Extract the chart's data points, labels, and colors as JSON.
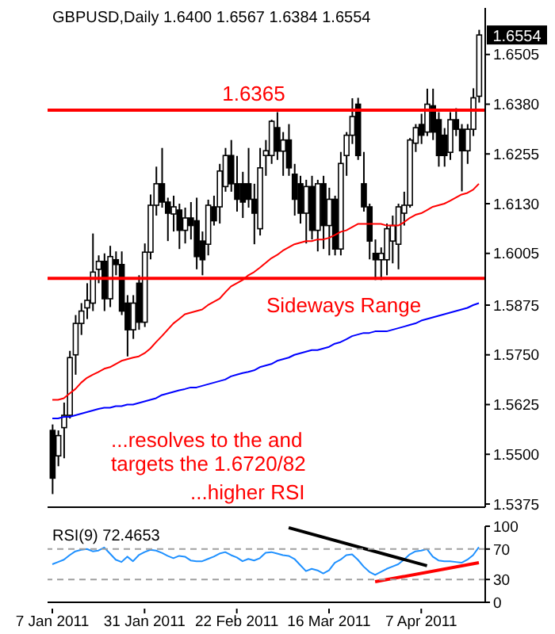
{
  "chart_data": [
    {
      "type": "candlestick",
      "title": "GBPUSD,Daily 1.6400 1.6567 1.6384 1.6554",
      "tick_labels": "y",
      "categories": [
        null,
        null,
        null,
        null,
        null,
        null,
        null,
        null,
        null,
        null,
        null,
        null,
        null,
        null,
        null,
        null,
        null,
        null,
        null,
        null,
        null,
        null,
        null,
        null,
        null,
        null,
        null,
        null,
        null,
        null,
        null,
        null,
        null,
        null,
        null,
        null,
        null,
        null,
        null,
        null,
        null,
        null,
        null,
        null,
        null,
        null,
        null,
        null,
        null,
        null,
        null,
        null,
        null,
        null,
        null,
        null,
        null,
        null,
        null,
        null,
        null,
        null,
        null,
        null,
        null,
        null,
        null,
        null,
        null,
        null,
        null,
        null,
        null,
        null,
        null
      ],
      "ohlc": [
        [
          1.556,
          1.5575,
          1.54,
          1.544
        ],
        [
          1.5496,
          1.556,
          1.547,
          1.5547
        ],
        [
          1.5567,
          1.563,
          1.549,
          1.5598
        ],
        [
          1.5598,
          1.576,
          1.559,
          1.5743
        ],
        [
          1.575,
          1.585,
          1.57,
          1.5829
        ],
        [
          1.5829,
          1.588,
          1.58,
          1.586
        ],
        [
          1.5868,
          1.593,
          1.584,
          1.5887
        ],
        [
          1.588,
          1.6055,
          1.586,
          1.5958
        ],
        [
          1.5965,
          1.6,
          1.593,
          1.5985
        ],
        [
          1.5985,
          1.6005,
          1.586,
          1.5891
        ],
        [
          1.5891,
          1.6024,
          1.587,
          1.5997
        ],
        [
          1.5989,
          1.601,
          1.595,
          1.5977
        ],
        [
          1.5977,
          1.601,
          1.585,
          1.586
        ],
        [
          1.588,
          1.59,
          1.5746,
          1.5813
        ],
        [
          1.5813,
          1.59,
          1.579,
          1.588
        ],
        [
          1.593,
          1.595,
          1.5813,
          1.5832
        ],
        [
          1.5832,
          1.603,
          1.582,
          1.6008
        ],
        [
          1.6008,
          1.6153,
          1.599,
          1.6126
        ],
        [
          1.6126,
          1.6223,
          1.61,
          1.618
        ],
        [
          1.618,
          1.627,
          1.612,
          1.6134
        ],
        [
          1.6134,
          1.6145,
          1.6036,
          1.6106
        ],
        [
          1.6104,
          1.615,
          1.606,
          1.6122
        ],
        [
          1.6114,
          1.613,
          1.6016,
          1.6063
        ],
        [
          1.6063,
          1.612,
          1.603,
          1.6094
        ],
        [
          1.6094,
          1.6134,
          1.604,
          1.6075
        ],
        [
          1.6087,
          1.6145,
          1.5965,
          1.5997
        ],
        [
          1.6036,
          1.606,
          1.595,
          1.5989
        ],
        [
          1.6028,
          1.614,
          1.6,
          1.6126
        ],
        [
          1.6122,
          1.615,
          1.6075,
          1.6087
        ],
        [
          1.6122,
          1.623,
          1.608,
          1.6212
        ],
        [
          1.6173,
          1.627,
          1.616,
          1.6251
        ],
        [
          1.6251,
          1.629,
          1.616,
          1.618
        ],
        [
          1.618,
          1.625,
          1.611,
          1.6141
        ],
        [
          1.618,
          1.621,
          1.6094,
          1.6134
        ],
        [
          1.618,
          1.627,
          1.612,
          1.6141
        ],
        [
          1.6141,
          1.618,
          1.6028,
          1.6106
        ],
        [
          1.6067,
          1.627,
          1.605,
          1.622
        ],
        [
          1.6251,
          1.629,
          1.62,
          1.6263
        ],
        [
          1.6251,
          1.6341,
          1.623,
          1.6337
        ],
        [
          1.6321,
          1.636,
          1.624,
          1.6262
        ],
        [
          1.6262,
          1.631,
          1.62,
          1.629
        ],
        [
          1.629,
          1.633,
          1.62,
          1.622
        ],
        [
          1.6204,
          1.623,
          1.61,
          1.6141
        ],
        [
          1.618,
          1.62,
          1.608,
          1.6106
        ],
        [
          1.6106,
          1.619,
          1.603,
          1.6173
        ],
        [
          1.6173,
          1.62,
          1.604,
          1.6063
        ],
        [
          1.6063,
          1.619,
          1.601,
          1.618
        ],
        [
          1.618,
          1.62,
          1.6016,
          1.6075
        ],
        [
          1.6075,
          1.617,
          1.6,
          1.6141
        ],
        [
          1.6141,
          1.615,
          1.6,
          1.6016
        ],
        [
          1.6016,
          1.626,
          1.6,
          1.6231
        ],
        [
          1.6251,
          1.631,
          1.62,
          1.6302
        ],
        [
          1.6302,
          1.6395,
          1.628,
          1.6349
        ],
        [
          1.638,
          1.6396,
          1.624,
          1.6251
        ],
        [
          1.618,
          1.626,
          1.611,
          1.6122
        ],
        [
          1.6122,
          1.613,
          1.599,
          1.6036
        ],
        [
          1.6005,
          1.604,
          1.5938,
          1.5989
        ],
        [
          1.5989,
          1.602,
          1.5938,
          1.6005
        ],
        [
          1.5989,
          1.608,
          1.595,
          1.6067
        ],
        [
          1.6036,
          1.61,
          1.598,
          1.6075
        ],
        [
          1.6028,
          1.613,
          1.5965,
          1.6122
        ],
        [
          1.6106,
          1.616,
          1.6075,
          1.6126
        ],
        [
          1.6126,
          1.6295,
          1.612,
          1.629
        ],
        [
          1.6282,
          1.633,
          1.626,
          1.6321
        ],
        [
          1.6329,
          1.6356,
          1.628,
          1.6302
        ],
        [
          1.631,
          1.6419,
          1.63,
          1.638
        ],
        [
          1.6376,
          1.6419,
          1.629,
          1.631
        ],
        [
          1.6341,
          1.636,
          1.6223,
          1.6251
        ],
        [
          1.6302,
          1.632,
          1.6223,
          1.6251
        ],
        [
          1.6259,
          1.636,
          1.624,
          1.6341
        ],
        [
          1.6341,
          1.637,
          1.63,
          1.6317
        ],
        [
          1.6317,
          1.633,
          1.6161,
          1.6263
        ],
        [
          1.6263,
          1.633,
          1.623,
          1.6317
        ],
        [
          1.6317,
          1.642,
          1.63,
          1.6396
        ],
        [
          1.64,
          1.6567,
          1.6384,
          1.6554
        ]
      ],
      "series": [
        {
          "type": "line",
          "color": "#ff0000",
          "values": [
            1.5637,
            1.5637,
            1.5641,
            1.5653,
            1.5664,
            1.568,
            1.5692,
            1.57,
            1.5707,
            1.5715,
            1.5719,
            1.5727,
            1.5735,
            1.5739,
            1.5743,
            1.5746,
            1.5754,
            1.5766,
            1.5782,
            1.5797,
            1.5813,
            1.5829,
            1.584,
            1.5852,
            1.5856,
            1.586,
            1.5864,
            1.5875,
            1.5883,
            1.5891,
            1.5907,
            1.5922,
            1.593,
            1.5938,
            1.595,
            1.5958,
            1.5969,
            1.5981,
            1.5993,
            1.6001,
            1.6012,
            1.602,
            1.6028,
            1.6032,
            1.6036,
            1.6036,
            1.604,
            1.604,
            1.6044,
            1.6051,
            1.6059,
            1.6063,
            1.6071,
            1.6079,
            1.6079,
            1.6079,
            1.6079,
            1.6079,
            1.6075,
            1.6075,
            1.6075,
            1.6083,
            1.6094,
            1.6102,
            1.6106,
            1.6114,
            1.6122,
            1.6126,
            1.613,
            1.6137,
            1.6145,
            1.6153,
            1.6157,
            1.6165,
            1.618
          ]
        },
        {
          "type": "line",
          "color": "#0000ff",
          "values": [
            1.559,
            1.559,
            1.5594,
            1.5594,
            1.5598,
            1.5602,
            1.5606,
            1.561,
            1.5614,
            1.5617,
            1.5617,
            1.5621,
            1.5621,
            1.5625,
            1.5625,
            1.5629,
            1.5633,
            1.5637,
            1.5641,
            1.5649,
            1.5653,
            1.5657,
            1.5661,
            1.5664,
            1.5668,
            1.5668,
            1.5672,
            1.5676,
            1.568,
            1.5684,
            1.5688,
            1.5696,
            1.57,
            1.5704,
            1.5707,
            1.5711,
            1.5719,
            1.5723,
            1.5727,
            1.5735,
            1.5739,
            1.5743,
            1.575,
            1.5754,
            1.5758,
            1.5762,
            1.5762,
            1.5766,
            1.577,
            1.5778,
            1.5782,
            1.5789,
            1.5797,
            1.5801,
            1.5805,
            1.5805,
            1.5809,
            1.5809,
            1.5809,
            1.5813,
            1.5817,
            1.5821,
            1.5825,
            1.5829,
            1.5836,
            1.584,
            1.5844,
            1.5848,
            1.5852,
            1.5856,
            1.586,
            1.5864,
            1.5868,
            1.5875,
            1.588
          ]
        }
      ],
      "ylim": [
        1.5367,
        1.6622
      ],
      "yticks": [
        1.5375,
        {
          "value": 1.55,
          "label": "1.5500"
        },
        1.5625,
        {
          "value": 1.575,
          "label": "1.5750"
        },
        1.5875,
        1.6005,
        {
          "value": 1.613,
          "label": "1.6130"
        },
        1.6255,
        {
          "value": 1.638,
          "label": "1.6380"
        },
        1.6505
      ],
      "ref_lines": [
        {
          "axis": "y",
          "value": 1.6365,
          "label": "1.6365",
          "color": "#ff0000"
        },
        {
          "axis": "y",
          "value": 1.5942,
          "color": "#ff0000"
        }
      ],
      "annotations": [
        "Sideways Range",
        "...resolves to the and\ntargets the 1.6720/82",
        "...higher RSI",
        {
          "text": "1.6554",
          "y": 1.6554
        }
      ]
    },
    {
      "type": "line",
      "title": "RSI(9) 72.4653",
      "categories": [
        "7 Jan 2011",
        null,
        null,
        null,
        null,
        null,
        null,
        null,
        null,
        null,
        null,
        null,
        null,
        null,
        null,
        null,
        "31 Jan 2011",
        null,
        null,
        null,
        null,
        null,
        null,
        null,
        null,
        null,
        null,
        null,
        null,
        null,
        null,
        null,
        "22 Feb 2011",
        null,
        null,
        null,
        null,
        null,
        null,
        null,
        null,
        null,
        null,
        null,
        null,
        null,
        null,
        null,
        "16 Mar 2011",
        null,
        null,
        null,
        null,
        null,
        null,
        null,
        null,
        null,
        null,
        null,
        null,
        null,
        null,
        null,
        "7 Apr 2011",
        null,
        null,
        null,
        null,
        null,
        null,
        null,
        null,
        null,
        null
      ],
      "series": [
        {
          "color": "#1e90ff",
          "values": [
            50,
            53,
            56,
            62,
            67,
            69,
            70,
            67,
            68,
            72,
            64,
            56,
            53,
            60,
            54,
            62,
            66,
            69,
            68,
            65,
            61,
            58,
            61,
            60,
            55,
            54,
            54,
            57,
            60,
            64,
            66,
            62,
            59,
            54,
            57,
            55,
            58,
            65,
            66,
            64,
            62,
            61,
            57,
            49,
            41,
            44,
            42,
            38,
            42,
            52,
            56,
            62,
            63,
            56,
            47,
            40,
            36,
            40,
            44,
            47,
            50,
            56,
            63,
            67,
            68,
            70,
            60,
            55,
            54,
            54,
            53,
            52,
            56,
            62,
            72.4653
          ]
        },
        {
          "color": "#ff0000",
          "values": [
            null,
            null,
            null,
            null,
            null,
            null,
            null,
            null,
            null,
            null,
            null,
            null,
            null,
            null,
            null,
            null,
            null,
            null,
            null,
            null,
            null,
            null,
            null,
            null,
            null,
            null,
            null,
            null,
            null,
            null,
            null,
            null,
            null,
            null,
            null,
            null,
            null,
            null,
            null,
            null,
            null,
            null,
            null,
            null,
            null,
            null,
            null,
            null,
            null,
            null,
            null,
            null,
            null,
            null,
            null,
            null,
            27,
            null,
            null,
            null,
            null,
            null,
            null,
            null,
            null,
            null,
            null,
            null,
            null,
            null,
            null,
            null,
            null,
            null,
            52
          ]
        },
        {
          "color": "#000000",
          "values": [
            null,
            null,
            null,
            null,
            null,
            null,
            null,
            null,
            null,
            null,
            null,
            null,
            null,
            null,
            null,
            null,
            null,
            null,
            null,
            null,
            null,
            null,
            null,
            null,
            null,
            null,
            null,
            null,
            null,
            null,
            null,
            null,
            null,
            null,
            null,
            null,
            null,
            null,
            null,
            null,
            null,
            98,
            null,
            null,
            null,
            null,
            null,
            null,
            null,
            null,
            null,
            null,
            null,
            null,
            null,
            null,
            null,
            null,
            null,
            null,
            null,
            null,
            null,
            null,
            null,
            48,
            null,
            null,
            null,
            null,
            null,
            null,
            null,
            null,
            null
          ]
        }
      ],
      "ylim": [
        0,
        100
      ],
      "yticks": [
        0,
        30,
        70,
        100
      ],
      "ref_lines": [
        {
          "axis": "y",
          "value": 70,
          "color": "#a0a0a0",
          "line_style": "dashed"
        },
        {
          "axis": "y",
          "value": 30,
          "color": "#a0a0a0",
          "line_style": "dashed"
        }
      ]
    }
  ]
}
